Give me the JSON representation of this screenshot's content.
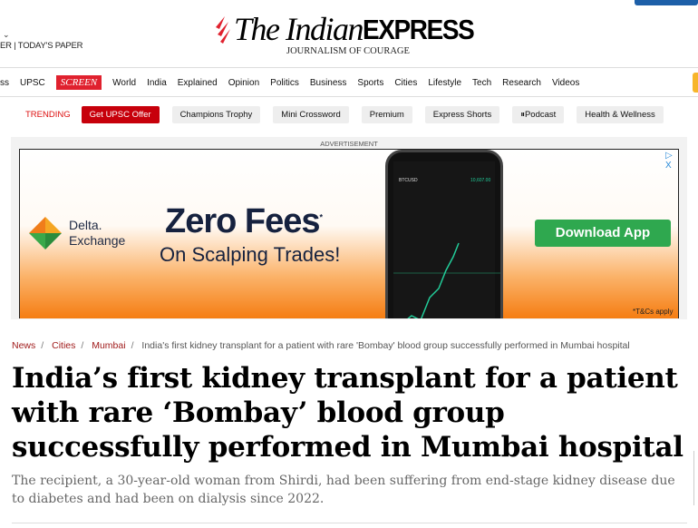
{
  "header": {
    "top_links": "ER  |  TODAY'S PAPER",
    "logo_the_indian": "The Indian",
    "logo_express": "EXPRESS",
    "tagline": "JOURNALISM OF COURAGE"
  },
  "nav": {
    "items": [
      "ss",
      "UPSC",
      "SCREEN",
      "World",
      "India",
      "Explained",
      "Opinion",
      "Politics",
      "Business",
      "Sports",
      "Cities",
      "Lifestyle",
      "Tech",
      "Research",
      "Videos"
    ]
  },
  "trending": {
    "label": "TRENDING",
    "items": [
      "Get UPSC Offer",
      "Champions Trophy",
      "Mini Crossword",
      "Premium",
      "Express Shorts",
      "⏸Podcast",
      "Health & Wellness"
    ]
  },
  "ad": {
    "label": "ADVERTISEMENT",
    "brand_line1": "Delta.",
    "brand_line2": "Exchange",
    "headline": "Zero Fees",
    "asterisk": "*",
    "subline": "On Scalping Trades!",
    "cta": "Download App",
    "terms": "*T&Cs apply",
    "close": "▷ X"
  },
  "breadcrumb": {
    "items": [
      "News",
      "Cities",
      "Mumbai"
    ],
    "current": "India's first kidney transplant for a patient with rare 'Bombay' blood group successfully performed in Mumbai hospital"
  },
  "article": {
    "title": "India’s first kidney transplant for a patient with rare ‘Bombay’ blood group successfully performed in Mumbai hospital",
    "subtitle": "The recipient, a 30-year-old woman from Shirdi, had been suffering from end-stage kidney disease due to diabetes and had been on dialysis since 2022."
  },
  "colors": {
    "brand_red": "#e0212e",
    "trending_red": "#c7000b",
    "cta_green": "#2fa84f",
    "ad_orange": "#f57d12"
  }
}
